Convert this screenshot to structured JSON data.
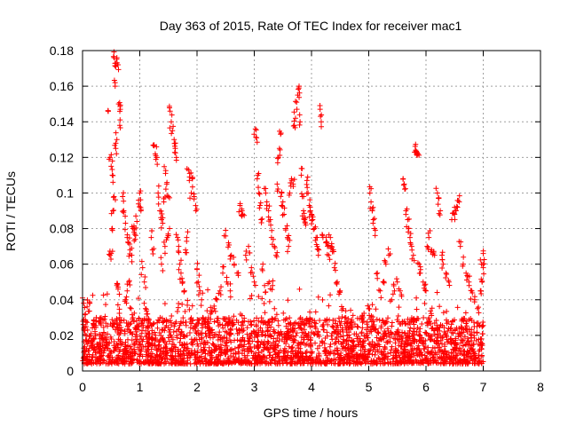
{
  "chart_data": {
    "type": "scatter",
    "title": "Day 363 of 2015, Rate Of TEC Index for receiver mac1",
    "xlabel": "GPS time / hours",
    "ylabel": "ROTI / TECUs",
    "xlim": [
      0,
      8
    ],
    "ylim": [
      0,
      0.18
    ],
    "xticks": [
      0,
      1,
      2,
      3,
      4,
      5,
      6,
      7,
      8
    ],
    "yticks": [
      0,
      0.02,
      0.04,
      0.06,
      0.08,
      0.1,
      0.12,
      0.14,
      0.16,
      0.18
    ],
    "ytick_labels": [
      "0",
      "0.02",
      "0.04",
      "0.06",
      "0.08",
      "0.1",
      "0.12",
      "0.14",
      "0.16",
      "0.18"
    ],
    "grid": true,
    "marker": "+",
    "color": "#ff0000",
    "series": [
      {
        "name": "ROTI",
        "points": [
          [
            0.0,
            0.041
          ],
          [
            0.02,
            0.024
          ],
          [
            0.05,
            0.032
          ],
          [
            0.08,
            0.036
          ],
          [
            0.12,
            0.038
          ],
          [
            0.15,
            0.021
          ],
          [
            0.2,
            0.018
          ],
          [
            0.25,
            0.015
          ],
          [
            0.3,
            0.012
          ],
          [
            0.35,
            0.02
          ],
          [
            0.4,
            0.018
          ],
          [
            0.45,
            0.146
          ],
          [
            0.48,
            0.12
          ],
          [
            0.5,
            0.115
          ],
          [
            0.52,
            0.11
          ],
          [
            0.53,
            0.09
          ],
          [
            0.55,
            0.176
          ],
          [
            0.57,
            0.16
          ],
          [
            0.58,
            0.171
          ],
          [
            0.6,
            0.176
          ],
          [
            0.62,
            0.172
          ],
          [
            0.63,
            0.15
          ],
          [
            0.65,
            0.138
          ],
          [
            0.66,
            0.147
          ],
          [
            0.6,
            0.13
          ],
          [
            0.58,
            0.125
          ],
          [
            0.55,
            0.098
          ],
          [
            0.52,
            0.08
          ],
          [
            0.5,
            0.066
          ],
          [
            0.48,
            0.065
          ],
          [
            0.6,
            0.048
          ],
          [
            0.62,
            0.046
          ],
          [
            0.65,
            0.03
          ],
          [
            0.7,
            0.098
          ],
          [
            0.72,
            0.09
          ],
          [
            0.75,
            0.083
          ],
          [
            0.78,
            0.075
          ],
          [
            0.8,
            0.072
          ],
          [
            0.83,
            0.068
          ],
          [
            0.86,
            0.065
          ],
          [
            0.88,
            0.08
          ],
          [
            0.9,
            0.078
          ],
          [
            0.92,
            0.074
          ],
          [
            0.95,
            0.084
          ],
          [
            0.98,
            0.096
          ],
          [
            1.0,
            0.1
          ],
          [
            1.02,
            0.09
          ],
          [
            1.05,
            0.058
          ],
          [
            1.08,
            0.05
          ],
          [
            1.1,
            0.035
          ],
          [
            1.12,
            0.032
          ],
          [
            0.85,
            0.035
          ],
          [
            0.88,
            0.03
          ],
          [
            1.15,
            0.028
          ],
          [
            1.2,
            0.075
          ],
          [
            1.22,
            0.068
          ],
          [
            1.25,
            0.127
          ],
          [
            1.27,
            0.122
          ],
          [
            1.3,
            0.12
          ],
          [
            1.32,
            0.1
          ],
          [
            1.35,
            0.09
          ],
          [
            1.38,
            0.085
          ],
          [
            1.4,
            0.083
          ],
          [
            1.42,
            0.095
          ],
          [
            1.45,
            0.111
          ],
          [
            1.47,
            0.105
          ],
          [
            1.5,
            0.098
          ],
          [
            1.52,
            0.08
          ],
          [
            1.53,
            0.146
          ],
          [
            1.55,
            0.14
          ],
          [
            1.57,
            0.135
          ],
          [
            1.6,
            0.13
          ],
          [
            1.62,
            0.125
          ],
          [
            1.64,
            0.12
          ],
          [
            1.66,
            0.075
          ],
          [
            1.68,
            0.07
          ],
          [
            1.7,
            0.06
          ],
          [
            1.72,
            0.055
          ],
          [
            1.75,
            0.05
          ],
          [
            1.78,
            0.045
          ],
          [
            1.8,
            0.068
          ],
          [
            1.82,
            0.075
          ],
          [
            1.85,
            0.113
          ],
          [
            1.87,
            0.109
          ],
          [
            1.9,
            0.1
          ],
          [
            1.92,
            0.108
          ],
          [
            1.95,
            0.098
          ],
          [
            1.98,
            0.09
          ],
          [
            2.0,
            0.057
          ],
          [
            2.02,
            0.05
          ],
          [
            2.05,
            0.045
          ],
          [
            2.08,
            0.04
          ],
          [
            2.1,
            0.03
          ],
          [
            2.15,
            0.025
          ],
          [
            2.2,
            0.03
          ],
          [
            2.25,
            0.033
          ],
          [
            2.3,
            0.035
          ],
          [
            2.35,
            0.04
          ],
          [
            2.4,
            0.045
          ],
          [
            2.45,
            0.055
          ],
          [
            2.5,
            0.079
          ],
          [
            2.55,
            0.072
          ],
          [
            2.6,
            0.065
          ],
          [
            2.65,
            0.06
          ],
          [
            2.7,
            0.055
          ],
          [
            2.75,
            0.093
          ],
          [
            2.78,
            0.091
          ],
          [
            2.8,
            0.088
          ],
          [
            2.85,
            0.065
          ],
          [
            2.9,
            0.07
          ],
          [
            2.95,
            0.058
          ],
          [
            3.0,
            0.05
          ],
          [
            3.02,
            0.136
          ],
          [
            3.04,
            0.131
          ],
          [
            3.06,
            0.11
          ],
          [
            3.08,
            0.1
          ],
          [
            3.1,
            0.093
          ],
          [
            3.12,
            0.085
          ],
          [
            3.15,
            0.06
          ],
          [
            3.18,
            0.048
          ],
          [
            3.2,
            0.1
          ],
          [
            3.22,
            0.095
          ],
          [
            3.25,
            0.09
          ],
          [
            3.28,
            0.085
          ],
          [
            3.3,
            0.075
          ],
          [
            3.35,
            0.07
          ],
          [
            3.38,
            0.065
          ],
          [
            3.4,
            0.105
          ],
          [
            3.42,
            0.12
          ],
          [
            3.44,
            0.125
          ],
          [
            3.46,
            0.133
          ],
          [
            3.48,
            0.1
          ],
          [
            3.5,
            0.095
          ],
          [
            3.52,
            0.088
          ],
          [
            3.55,
            0.08
          ],
          [
            3.58,
            0.075
          ],
          [
            3.6,
            0.07
          ],
          [
            3.62,
            0.1
          ],
          [
            3.65,
            0.108
          ],
          [
            3.68,
            0.105
          ],
          [
            3.7,
            0.138
          ],
          [
            3.72,
            0.142
          ],
          [
            3.74,
            0.151
          ],
          [
            3.76,
            0.155
          ],
          [
            3.78,
            0.159
          ],
          [
            3.8,
            0.14
          ],
          [
            3.82,
            0.11
          ],
          [
            3.84,
            0.098
          ],
          [
            3.86,
            0.09
          ],
          [
            3.88,
            0.085
          ],
          [
            3.9,
            0.082
          ],
          [
            3.92,
            0.107
          ],
          [
            3.94,
            0.1
          ],
          [
            3.96,
            0.093
          ],
          [
            3.98,
            0.09
          ],
          [
            4.0,
            0.088
          ],
          [
            4.02,
            0.085
          ],
          [
            4.05,
            0.08
          ],
          [
            4.08,
            0.075
          ],
          [
            4.1,
            0.07
          ],
          [
            4.12,
            0.065
          ],
          [
            4.15,
            0.147
          ],
          [
            4.17,
            0.14
          ],
          [
            4.2,
            0.075
          ],
          [
            4.25,
            0.072
          ],
          [
            4.3,
            0.065
          ],
          [
            4.35,
            0.07
          ],
          [
            4.4,
            0.058
          ],
          [
            4.45,
            0.05
          ],
          [
            4.5,
            0.045
          ],
          [
            4.55,
            0.035
          ],
          [
            4.6,
            0.03
          ],
          [
            4.7,
            0.028
          ],
          [
            4.8,
            0.025
          ],
          [
            4.9,
            0.03
          ],
          [
            5.0,
            0.035
          ],
          [
            5.02,
            0.1
          ],
          [
            5.04,
            0.095
          ],
          [
            5.06,
            0.09
          ],
          [
            5.08,
            0.085
          ],
          [
            5.1,
            0.08
          ],
          [
            5.15,
            0.055
          ],
          [
            5.2,
            0.045
          ],
          [
            5.25,
            0.05
          ],
          [
            5.3,
            0.06
          ],
          [
            5.35,
            0.065
          ],
          [
            5.4,
            0.04
          ],
          [
            5.45,
            0.045
          ],
          [
            5.5,
            0.05
          ],
          [
            5.55,
            0.045
          ],
          [
            5.6,
            0.108
          ],
          [
            5.62,
            0.105
          ],
          [
            5.65,
            0.09
          ],
          [
            5.68,
            0.085
          ],
          [
            5.7,
            0.08
          ],
          [
            5.72,
            0.075
          ],
          [
            5.75,
            0.07
          ],
          [
            5.78,
            0.065
          ],
          [
            5.8,
            0.123
          ],
          [
            5.82,
            0.124
          ],
          [
            5.84,
            0.123
          ],
          [
            5.86,
            0.122
          ],
          [
            5.88,
            0.06
          ],
          [
            5.9,
            0.055
          ],
          [
            5.95,
            0.05
          ],
          [
            6.0,
            0.045
          ],
          [
            6.02,
            0.07
          ],
          [
            6.05,
            0.075
          ],
          [
            6.1,
            0.068
          ],
          [
            6.15,
            0.065
          ],
          [
            6.2,
            0.1
          ],
          [
            6.22,
            0.097
          ],
          [
            6.25,
            0.09
          ],
          [
            6.28,
            0.065
          ],
          [
            6.3,
            0.06
          ],
          [
            6.35,
            0.055
          ],
          [
            6.4,
            0.05
          ],
          [
            6.45,
            0.085
          ],
          [
            6.5,
            0.088
          ],
          [
            6.52,
            0.09
          ],
          [
            6.55,
            0.092
          ],
          [
            6.58,
            0.095
          ],
          [
            6.6,
            0.07
          ],
          [
            6.65,
            0.06
          ],
          [
            6.7,
            0.055
          ],
          [
            6.75,
            0.05
          ],
          [
            6.8,
            0.045
          ],
          [
            6.85,
            0.04
          ],
          [
            6.9,
            0.035
          ],
          [
            6.95,
            0.045
          ],
          [
            6.97,
            0.06
          ],
          [
            7.0,
            0.066
          ],
          [
            7.0,
            0.058
          ],
          [
            6.98,
            0.05
          ],
          [
            4.28,
            0.07
          ],
          [
            4.33,
            0.075
          ],
          [
            4.38,
            0.068
          ],
          [
            3.26,
            0.05
          ],
          [
            3.32,
            0.048
          ],
          [
            2.52,
            0.05
          ],
          [
            2.58,
            0.045
          ],
          [
            1.38,
            0.06
          ],
          [
            1.44,
            0.07
          ],
          [
            1.48,
            0.075
          ],
          [
            0.75,
            0.04
          ],
          [
            0.78,
            0.045
          ],
          [
            0.81,
            0.05
          ]
        ],
        "dense_band": {
          "x_range": [
            0,
            7
          ],
          "y_range": [
            0.004,
            0.03
          ]
        }
      }
    ]
  }
}
